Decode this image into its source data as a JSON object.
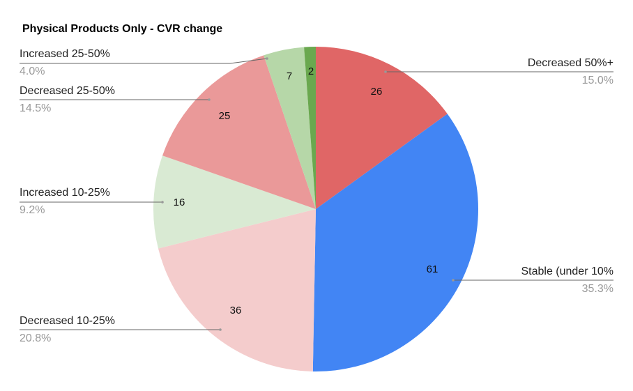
{
  "chart_data": {
    "type": "pie",
    "title": "Physical Products Only - CVR change",
    "categories": [
      "Decreased 50%+",
      "Stable (under 10%",
      "Decreased 10-25%",
      "Increased 10-25%",
      "Decreased 25-50%",
      "Increased 25-50%",
      null
    ],
    "values": [
      26,
      61,
      36,
      16,
      25,
      7,
      2
    ],
    "percent_labels": [
      "15.0%",
      "35.3%",
      "20.8%",
      "9.2%",
      "14.5%",
      "4.0%",
      null
    ],
    "colors": [
      "#e06666",
      "#4285f4",
      "#f4cccc",
      "#d9ead3",
      "#ea9999",
      "#b6d7a8",
      "#6aa84f"
    ]
  }
}
